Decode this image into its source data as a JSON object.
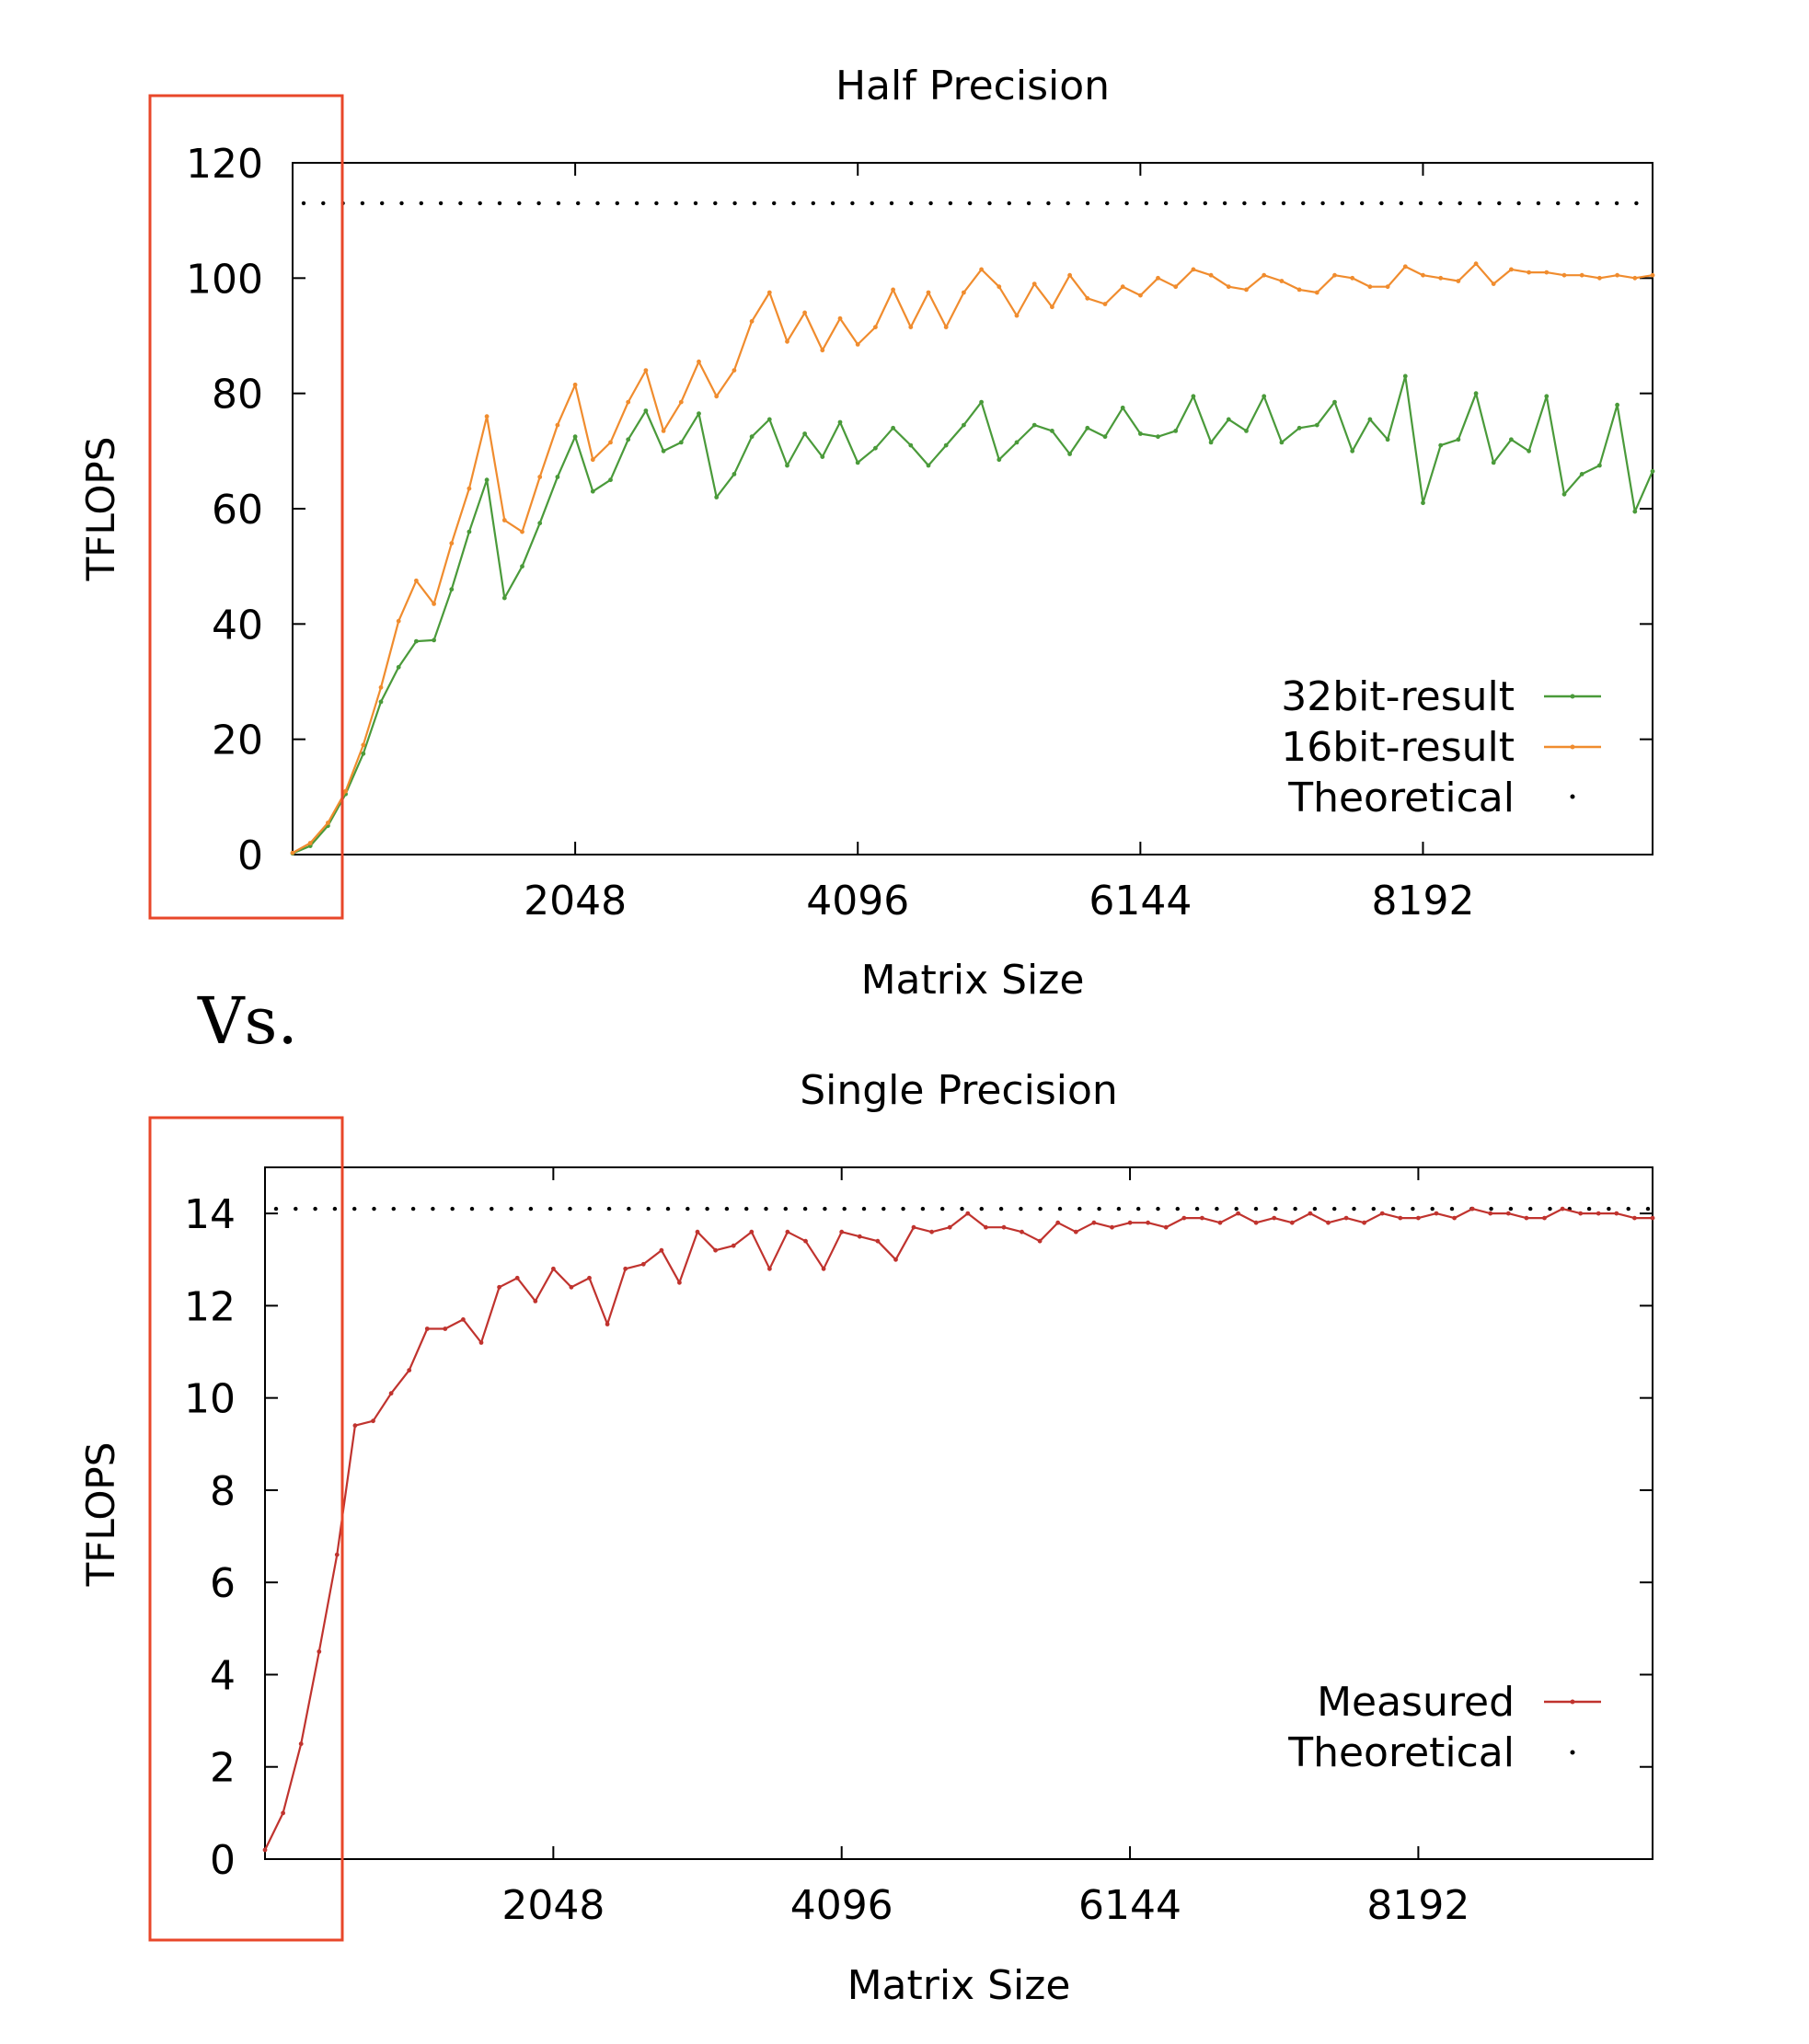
{
  "colors": {
    "series_32bit": "#4a9a3a",
    "series_16bit": "#f08c2e",
    "series_measured": "#c0332e",
    "theoretical": "#000000",
    "highlight_box": "#e8472a"
  },
  "separator_text": "Vs.",
  "chart_data": [
    {
      "type": "line",
      "title": "Half Precision",
      "xlabel": "Matrix Size",
      "ylabel": "TFLOPS",
      "xlim": [
        0,
        9856
      ],
      "ylim": [
        0,
        120
      ],
      "xticks": [
        2048,
        4096,
        6144,
        8192
      ],
      "xtick_labels": [
        "2048",
        "4096",
        "6144",
        "8192"
      ],
      "yticks": [
        0,
        20,
        40,
        60,
        80,
        100,
        120
      ],
      "ytick_labels": [
        "0",
        "20",
        "40",
        "60",
        "80",
        "100",
        "120"
      ],
      "grid": false,
      "legend_position": "bottom-right",
      "highlight_range": {
        "x": [
          0,
          384
        ],
        "note": "boxed region around y-axis labels"
      },
      "theoretical": 113,
      "x": [
        0,
        128,
        256,
        384,
        512,
        640,
        768,
        896,
        1024,
        1152,
        1280,
        1408,
        1536,
        1664,
        1792,
        1920,
        2048,
        2176,
        2304,
        2432,
        2560,
        2688,
        2816,
        2944,
        3072,
        3200,
        3328,
        3456,
        3584,
        3712,
        3840,
        3968,
        4096,
        4224,
        4352,
        4480,
        4608,
        4736,
        4864,
        4992,
        5120,
        5248,
        5376,
        5504,
        5632,
        5760,
        5888,
        6016,
        6144,
        6272,
        6400,
        6528,
        6656,
        6784,
        6912,
        7040,
        7168,
        7296,
        7424,
        7552,
        7680,
        7808,
        7936,
        8064,
        8192,
        8320,
        8448,
        8576,
        8704,
        8832,
        8960,
        9088,
        9216,
        9344,
        9472,
        9600,
        9728,
        9856
      ],
      "series": [
        {
          "name": "32bit-result",
          "values": [
            0.2,
            1.5,
            5,
            10.5,
            17.5,
            26.5,
            32.5,
            37,
            37.2,
            46,
            56,
            65,
            44.5,
            50,
            57.5,
            65.5,
            72.5,
            63,
            65,
            72,
            77,
            70,
            71.5,
            76.5,
            62,
            66,
            72.5,
            75.5,
            67.5,
            73,
            69,
            75,
            68,
            70.5,
            74,
            71,
            67.5,
            71,
            74.5,
            78.5,
            68.5,
            71.5,
            74.5,
            73.5,
            69.5,
            74,
            72.5,
            77.5,
            73,
            72.5,
            73.5,
            79.5,
            71.5,
            75.5,
            73.5,
            79.5,
            71.5,
            74,
            74.5,
            78.5,
            70,
            75.5,
            72,
            83,
            61,
            71,
            72,
            80,
            68,
            72,
            70,
            79.5,
            62.5,
            66,
            67.5,
            78,
            59.5,
            66.5
          ]
        },
        {
          "name": "16bit-result",
          "values": [
            0.3,
            2,
            5.5,
            11,
            19,
            29,
            40.5,
            47.5,
            43.5,
            54,
            63.5,
            76,
            58,
            56,
            65.5,
            74.5,
            81.5,
            68.5,
            71.5,
            78.5,
            84,
            73.5,
            78.5,
            85.5,
            79.5,
            84,
            92.5,
            97.5,
            89,
            94,
            87.5,
            93,
            88.5,
            91.5,
            98,
            91.5,
            97.5,
            91.5,
            97.5,
            101.5,
            98.5,
            93.5,
            99,
            95,
            100.5,
            96.5,
            95.5,
            98.5,
            97,
            100,
            98.5,
            101.5,
            100.5,
            98.5,
            98,
            100.5,
            99.5,
            98,
            97.5,
            100.5,
            100,
            98.5,
            98.5,
            102,
            100.5,
            100,
            99.5,
            102.5,
            99,
            101.5,
            101,
            101,
            100.5,
            100.5,
            100,
            100.5,
            100,
            100.5
          ]
        }
      ],
      "legend": [
        "32bit-result",
        "16bit-result",
        "Theoretical"
      ]
    },
    {
      "type": "line",
      "title": "Single Precision",
      "xlabel": "Matrix Size",
      "ylabel": "TFLOPS",
      "xlim": [
        0,
        9856
      ],
      "ylim": [
        0,
        15
      ],
      "xticks": [
        2048,
        4096,
        6144,
        8192
      ],
      "xtick_labels": [
        "2048",
        "4096",
        "6144",
        "8192"
      ],
      "yticks": [
        0,
        2,
        4,
        6,
        8,
        10,
        12,
        14
      ],
      "ytick_labels": [
        "0",
        "2",
        "4",
        "6",
        "8",
        "10",
        "12",
        "14"
      ],
      "grid": false,
      "legend_position": "bottom-right",
      "highlight_range": {
        "x": [
          0,
          512
        ],
        "note": "boxed region around y-axis labels"
      },
      "theoretical": 14.1,
      "x": [
        0,
        128,
        256,
        384,
        512,
        640,
        768,
        896,
        1024,
        1152,
        1280,
        1408,
        1536,
        1664,
        1792,
        1920,
        2048,
        2176,
        2304,
        2432,
        2560,
        2688,
        2816,
        2944,
        3072,
        3200,
        3328,
        3456,
        3584,
        3712,
        3840,
        3968,
        4096,
        4224,
        4352,
        4480,
        4608,
        4736,
        4864,
        4992,
        5120,
        5248,
        5376,
        5504,
        5632,
        5760,
        5888,
        6016,
        6144,
        6272,
        6400,
        6528,
        6656,
        6784,
        6912,
        7040,
        7168,
        7296,
        7424,
        7552,
        7680,
        7808,
        7936,
        8064,
        8192,
        8320,
        8448,
        8576,
        8704,
        8832,
        8960,
        9088,
        9216,
        9344,
        9472,
        9600,
        9728,
        9856
      ],
      "series": [
        {
          "name": "Measured",
          "values": [
            0.2,
            1,
            2.5,
            4.5,
            6.6,
            9.4,
            9.5,
            10.1,
            10.6,
            11.5,
            11.5,
            11.7,
            11.2,
            12.4,
            12.6,
            12.1,
            12.8,
            12.4,
            12.6,
            11.6,
            12.8,
            12.9,
            13.2,
            12.5,
            13.6,
            13.2,
            13.3,
            13.6,
            12.8,
            13.6,
            13.4,
            12.8,
            13.6,
            13.5,
            13.4,
            13.0,
            13.7,
            13.6,
            13.7,
            14.0,
            13.7,
            13.7,
            13.6,
            13.4,
            13.8,
            13.6,
            13.8,
            13.7,
            13.8,
            13.8,
            13.7,
            13.9,
            13.9,
            13.8,
            14.0,
            13.8,
            13.9,
            13.8,
            14.0,
            13.8,
            13.9,
            13.8,
            14.0,
            13.9,
            13.9,
            14.0,
            13.9,
            14.1,
            14.0,
            14.0,
            13.9,
            13.9,
            14.1,
            14.0,
            14.0,
            14.0,
            13.9,
            13.9
          ]
        }
      ],
      "legend": [
        "Measured",
        "Theoretical"
      ]
    }
  ]
}
